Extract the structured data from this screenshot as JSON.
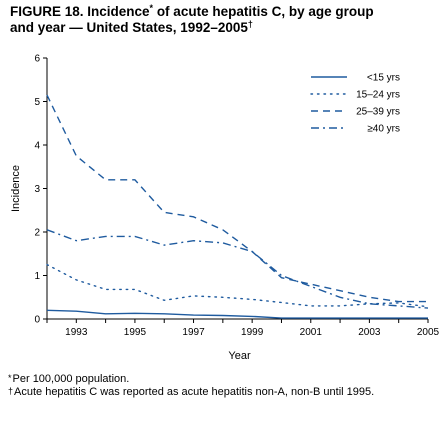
{
  "figure": {
    "title_line1": "FIGURE 18. Incidence",
    "title_mark": "*",
    "title_rest": " of acute hepatitis C, by age group",
    "title_line2": "and year — United States, 1992–2005",
    "title_mark2": "†"
  },
  "footnotes": [
    {
      "mark": "*",
      "text": "Per 100,000 population."
    },
    {
      "mark": "†",
      "text": "Acute hepatitis C was reported as acute hepatitis non-A, non-B until 1995."
    }
  ],
  "chart_data": {
    "type": "line",
    "xlabel": "Year",
    "ylabel": "Incidence",
    "xlim": [
      1992,
      2005
    ],
    "ylim": [
      0,
      6
    ],
    "x": [
      1992,
      1993,
      1994,
      1995,
      1996,
      1997,
      1998,
      1999,
      2000,
      2001,
      2002,
      2003,
      2004,
      2005
    ],
    "x_ticks": [
      "1993",
      "1995",
      "1997",
      "1999",
      "2001",
      "2003",
      "2005"
    ],
    "y_ticks": [
      "0",
      "1",
      "2",
      "3",
      "4",
      "5",
      "6"
    ],
    "legend_position": "top-right",
    "grid": false,
    "series": [
      {
        "name": "<15 yrs",
        "style": "solid",
        "values": [
          0.2,
          0.18,
          0.12,
          0.13,
          0.12,
          0.09,
          0.08,
          0.06,
          0.02,
          0.02,
          0.02,
          0.02,
          0.02,
          0.02
        ]
      },
      {
        "name": "15–24 yrs",
        "style": "dotted",
        "values": [
          1.25,
          0.9,
          0.68,
          0.68,
          0.43,
          0.53,
          0.5,
          0.45,
          0.38,
          0.3,
          0.3,
          0.35,
          0.37,
          0.28
        ]
      },
      {
        "name": "25–39 yrs",
        "style": "dashed",
        "values": [
          5.15,
          3.75,
          3.2,
          3.2,
          2.45,
          2.35,
          2.05,
          1.55,
          0.95,
          0.8,
          0.65,
          0.5,
          0.4,
          0.4
        ]
      },
      {
        "name": "≥40 yrs",
        "style": "dashdot",
        "values": [
          2.05,
          1.8,
          1.9,
          1.9,
          1.7,
          1.8,
          1.75,
          1.55,
          1.0,
          0.75,
          0.5,
          0.35,
          0.3,
          0.25
        ]
      }
    ]
  },
  "colors": {
    "line": "#1f5b9f",
    "axis": "#000000"
  }
}
